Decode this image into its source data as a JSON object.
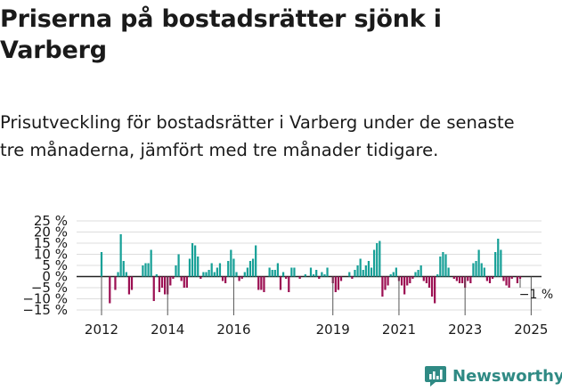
{
  "title": "Priserna på bostadsrätter sjönk i Varberg",
  "subtitle": "Prisutveckling för bostadsrätter i Varberg under de senaste tre månaderna, jämfört med tre månader tidigare.",
  "brand": "Newsworthy",
  "colors": {
    "positive": "#17a097",
    "negative": "#9c1053",
    "text": "#1a1a1a",
    "grid": "#dddddd",
    "brand": "#2f8a84"
  },
  "chart_data": {
    "type": "bar",
    "start_year": 2012,
    "points_per_year": 12,
    "ylim": [
      -15,
      25
    ],
    "yticks": [
      -15,
      -10,
      -5,
      0,
      5,
      10,
      15,
      20,
      25
    ],
    "ytick_labels": [
      "−15 %",
      "−10 %",
      "−5 %",
      "0 %",
      "5 %",
      "10 %",
      "15 %",
      "20 %",
      "25 %"
    ],
    "xtick_years": [
      2012,
      2014,
      2016,
      2019,
      2021,
      2023,
      2025
    ],
    "xtick_labels": [
      "2012",
      "2014",
      "2016",
      "2019",
      "2021",
      "2023",
      "2025"
    ],
    "annotation": "−1 %",
    "values": [
      11,
      null,
      null,
      -12,
      null,
      -6,
      2,
      19,
      7,
      2,
      -8,
      -6,
      null,
      null,
      null,
      5,
      6,
      6,
      12,
      -11,
      1,
      -7,
      -5,
      -8,
      -8,
      -4,
      -1,
      5,
      10,
      -2,
      -5,
      -5,
      8,
      15,
      14,
      9,
      -1,
      2,
      2,
      3,
      6,
      2,
      4,
      6,
      -2,
      -3,
      7,
      12,
      8,
      2,
      -2,
      -1,
      2,
      4,
      7,
      8,
      14,
      -6,
      -6,
      -7,
      null,
      4,
      3,
      3,
      6,
      -6,
      2,
      -1,
      -7,
      4,
      4,
      null,
      -1,
      null,
      1,
      null,
      4,
      1,
      3,
      -1,
      2,
      1,
      4,
      null,
      -3,
      -7,
      -6,
      -2,
      null,
      null,
      2,
      -1,
      3,
      5,
      8,
      3,
      5,
      7,
      4,
      12,
      15,
      16,
      -9,
      -6,
      -4,
      1,
      2,
      4,
      -2,
      -4,
      -8,
      -4,
      -3,
      -1,
      2,
      3,
      5,
      -2,
      -3,
      -5,
      -9,
      -12,
      1,
      9,
      11,
      10,
      4,
      null,
      -1,
      -2,
      -3,
      -3,
      -5,
      -2,
      -3,
      6,
      7,
      12,
      6,
      4,
      -2,
      -3,
      -1,
      11,
      17,
      12,
      -2,
      -4,
      -5,
      -1,
      null,
      -3,
      -1
    ]
  }
}
